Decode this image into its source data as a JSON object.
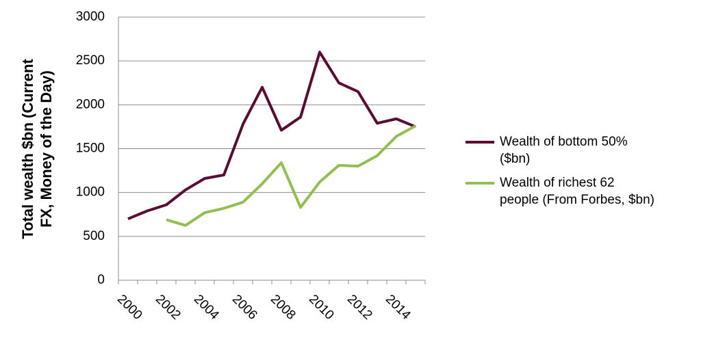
{
  "chart_data": {
    "type": "line",
    "ylabel": "Total wealth $bn (Current FX, Money of the Day)",
    "categories": [
      "2000",
      null,
      "2002",
      null,
      "2004",
      null,
      "2006",
      null,
      "2008",
      null,
      "2010",
      null,
      "2012",
      null,
      "2014",
      null
    ],
    "series": [
      {
        "name": "Wealth of bottom 50% ($bn)",
        "color": "#5c0a33",
        "values": [
          700,
          790,
          860,
          1030,
          1160,
          1200,
          1780,
          2200,
          1710,
          1860,
          2600,
          2250,
          2150,
          1790,
          1840,
          1750
        ]
      },
      {
        "name": "Wealth of richest 62 people (From Forbes, $bn)",
        "color": "#92c050",
        "values": [
          null,
          null,
          690,
          625,
          770,
          820,
          890,
          1100,
          1340,
          830,
          1120,
          1310,
          1300,
          1420,
          1640,
          1760
        ]
      }
    ],
    "ylim": [
      0,
      3000
    ],
    "yticks": [
      0,
      500,
      1000,
      1500,
      2000,
      2500,
      3000
    ],
    "grid": true,
    "legend": "right"
  }
}
